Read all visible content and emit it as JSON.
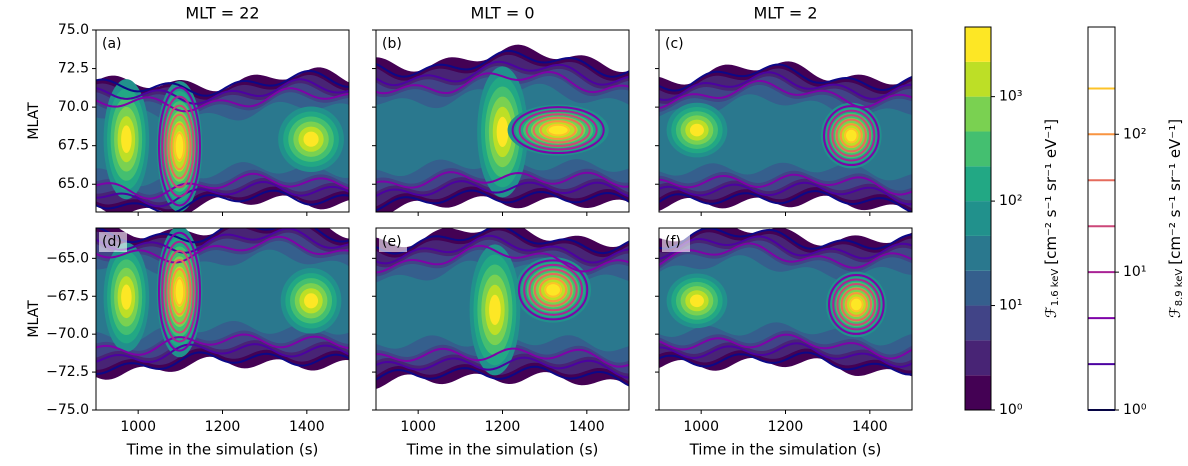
{
  "chart_data": [
    {
      "type": "contour",
      "title": "MLT = 22",
      "panel_label": "(a)",
      "ylabel": "MLAT",
      "xlim": [
        900,
        1500
      ],
      "xticks": [
        1000,
        1200,
        1400
      ],
      "xtick_labels": false,
      "ylim": [
        63.2,
        75
      ],
      "yticks": [
        {
          "value": 65,
          "label": "65.0"
        },
        {
          "value": 67.5,
          "label": "67.5"
        },
        {
          "value": 70,
          "label": "70.0"
        },
        {
          "value": 72.5,
          "label": "72.5"
        },
        {
          "value": 75,
          "label": "75.0"
        }
      ],
      "ytick_labels": true
    },
    {
      "type": "contour",
      "title": "MLT = 0",
      "panel_label": "(b)",
      "xlim": [
        900,
        1500
      ],
      "xticks": [
        1000,
        1200,
        1400
      ],
      "xtick_labels": false,
      "ylim": [
        63.2,
        75
      ],
      "yticks": [
        65,
        67.5,
        70,
        72.5,
        75
      ],
      "ytick_labels": false
    },
    {
      "type": "contour",
      "title": "MLT = 2",
      "panel_label": "(c)",
      "xlim": [
        900,
        1500
      ],
      "xticks": [
        1000,
        1200,
        1400
      ],
      "xtick_labels": false,
      "ylim": [
        63.2,
        75
      ],
      "yticks": [
        65,
        67.5,
        70,
        72.5,
        75
      ],
      "ytick_labels": false
    },
    {
      "type": "contour",
      "panel_label": "(d)",
      "ylabel": "MLAT",
      "xlabel": "Time in the simulation (s)",
      "xlim": [
        900,
        1500
      ],
      "xticks": [
        1000,
        1200,
        1400
      ],
      "xtick_labels": true,
      "ylim": [
        -75,
        -63
      ],
      "yticks": [
        {
          "value": -75,
          "label": "−75.0"
        },
        {
          "value": -72.5,
          "label": "−72.5"
        },
        {
          "value": -70,
          "label": "−70.0"
        },
        {
          "value": -67.5,
          "label": "−67.5"
        },
        {
          "value": -65,
          "label": "−65.0"
        }
      ],
      "ytick_labels": true
    },
    {
      "type": "contour",
      "panel_label": "(e)",
      "xlabel": "Time in the simulation (s)",
      "xlim": [
        900,
        1500
      ],
      "xticks": [
        1000,
        1200,
        1400
      ],
      "xtick_labels": true,
      "ylim": [
        -75,
        -63
      ],
      "yticks": [
        -75,
        -72.5,
        -70,
        -67.5,
        -65
      ],
      "ytick_labels": false
    },
    {
      "type": "contour",
      "panel_label": "(f)",
      "xlabel": "Time in the simulation (s)",
      "xlim": [
        900,
        1500
      ],
      "xticks": [
        1000,
        1200,
        1400
      ],
      "xtick_labels": true,
      "ylim": [
        -75,
        -63
      ],
      "yticks": [
        -75,
        -72.5,
        -70,
        -67.5,
        -65
      ],
      "ytick_labels": false
    },
    {
      "type": "colorbar",
      "style": "filled",
      "scale": "log",
      "ylim": [
        1,
        4642
      ],
      "yticks": [
        {
          "value": 1,
          "label": "10⁰"
        },
        {
          "value": 10,
          "label": "10¹"
        },
        {
          "value": 100,
          "label": "10²"
        },
        {
          "value": 1000,
          "label": "10³"
        }
      ],
      "levels": [
        1,
        2.15,
        4.64,
        10,
        21.5,
        46.4,
        100,
        215,
        464,
        1000,
        2154,
        4642
      ],
      "colors": [
        "#440154",
        "#482475",
        "#414487",
        "#355f8d",
        "#2a788e",
        "#21918c",
        "#22a884",
        "#44bf70",
        "#7ad151",
        "#bddf26",
        "#fde725"
      ],
      "label": "ℱ",
      "label_sub": "1.6 keV",
      "label_unit": "[cm⁻² s⁻¹ sr⁻¹ eV⁻¹]"
    },
    {
      "type": "colorbar",
      "style": "lines",
      "scale": "log",
      "ylim": [
        1,
        600
      ],
      "yticks": [
        {
          "value": 1,
          "label": "10⁰"
        },
        {
          "value": 10,
          "label": "10¹"
        },
        {
          "value": 100,
          "label": "10²"
        }
      ],
      "levels": [
        1,
        2.15,
        4.64,
        10,
        21.5,
        46.4,
        100,
        215
      ],
      "colors": [
        "#0d0887",
        "#4c02a1",
        "#7e03a8",
        "#a92395",
        "#cc4778",
        "#e56b5d",
        "#f89441",
        "#fdc328"
      ],
      "label": "ℱ",
      "label_sub": "8.9 keV",
      "label_unit": "[cm⁻² s⁻¹ sr⁻¹ eV⁻¹]"
    }
  ]
}
